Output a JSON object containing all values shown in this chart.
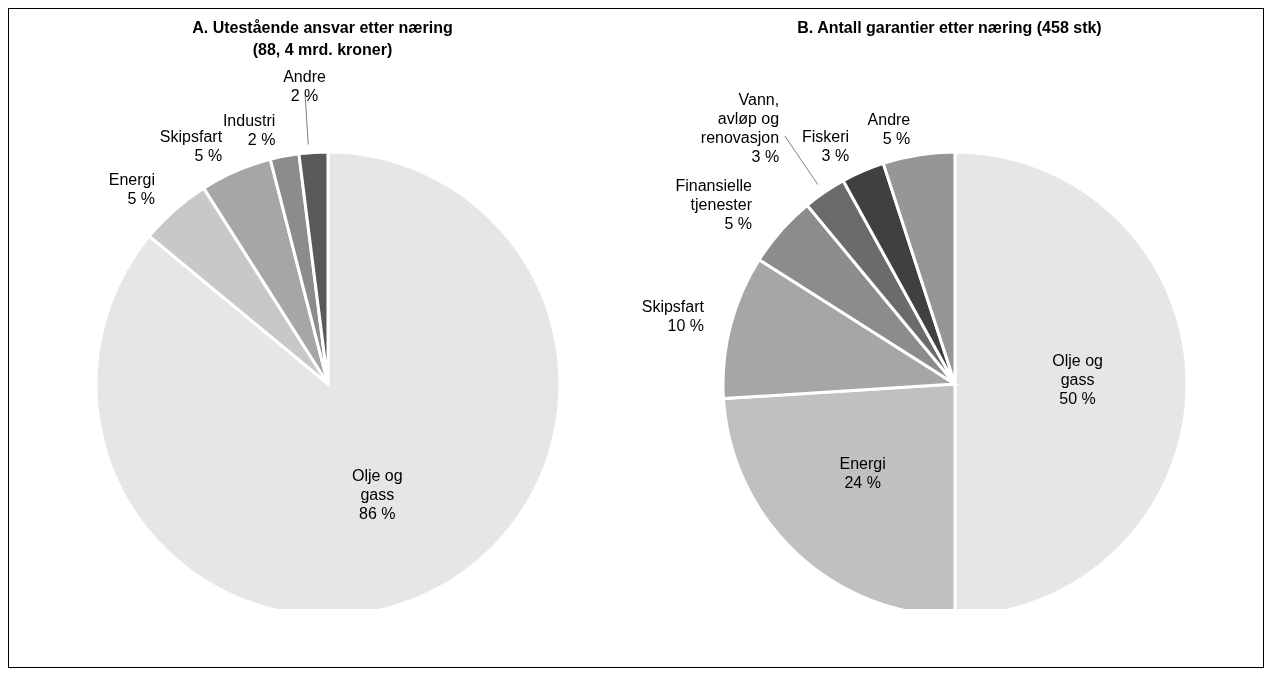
{
  "chart_data": [
    {
      "type": "pie",
      "title": "A. Utestående ansvar etter næring\n(88, 4 mrd. kroner)",
      "categories": [
        "Olje og gass",
        "Energi",
        "Skipsfart",
        "Industri",
        "Andre"
      ],
      "values": [
        86,
        5,
        5,
        2,
        2
      ],
      "value_labels": [
        "86 %",
        "5 %",
        "5 %",
        "2 %",
        "2 %"
      ],
      "colors": [
        "#e6e6e6",
        "#c8c8c8",
        "#a6a6a6",
        "#8c8c8c",
        "#595959"
      ]
    },
    {
      "type": "pie",
      "title": "B. Antall garantier etter næring (458 stk)",
      "categories": [
        "Olje og gass",
        "Energi",
        "Skipsfart",
        "Finansielle tjenester",
        "Vann, avløp og renovasjon",
        "Fiskeri",
        "Andre"
      ],
      "values": [
        50,
        24,
        10,
        5,
        3,
        3,
        5
      ],
      "value_labels": [
        "50 %",
        "24 %",
        "10 %",
        "5 %",
        "3 %",
        "3 %",
        "5 %"
      ],
      "colors": [
        "#e6e6e6",
        "#c0c0c0",
        "#a6a6a6",
        "#8c8c8c",
        "#6b6b6b",
        "#404040",
        "#969696"
      ]
    }
  ]
}
